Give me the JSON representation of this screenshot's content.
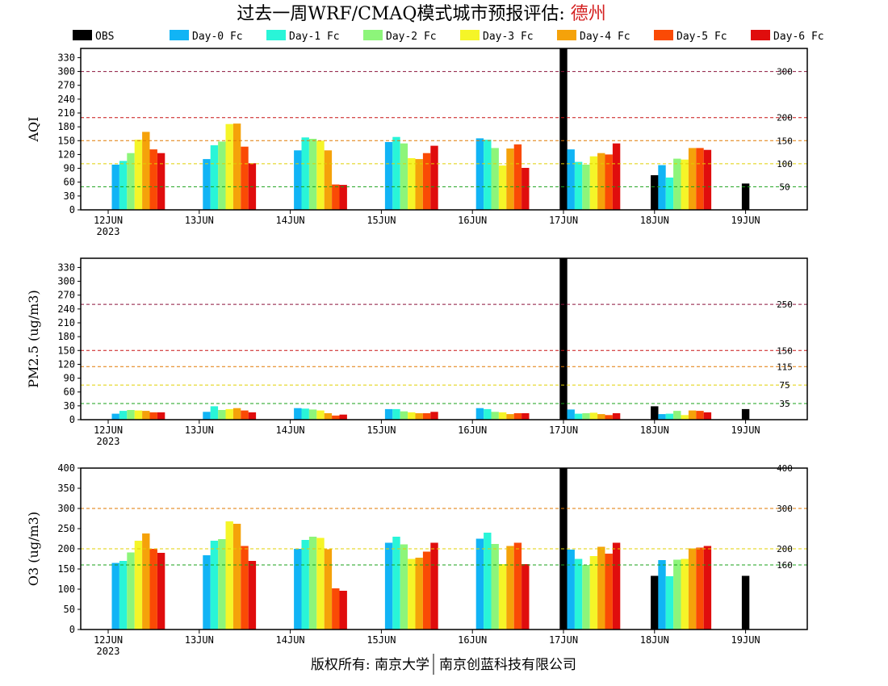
{
  "title_main": "过去一周WRF/CMAQ模式城市预报评估: ",
  "title_city": "德州",
  "footer": {
    "left": "版权所有: 南京大学",
    "right": "南京创蓝科技有限公司"
  },
  "legend": [
    {
      "name": "OBS",
      "color": "#000000"
    },
    {
      "name": "Day-0 Fc",
      "color": "#11b4f5"
    },
    {
      "name": "Day-1 Fc",
      "color": "#29f5d8"
    },
    {
      "name": "Day-2 Fc",
      "color": "#8df57a"
    },
    {
      "name": "Day-3 Fc",
      "color": "#f5f528"
    },
    {
      "name": "Day-4 Fc",
      "color": "#f5a20a"
    },
    {
      "name": "Day-5 Fc",
      "color": "#fa4a05"
    },
    {
      "name": "Day-6 Fc",
      "color": "#e00d0d"
    }
  ],
  "chart_data": [
    {
      "type": "bar",
      "ylabel": "AQI",
      "ylim": [
        0,
        350
      ],
      "yticks": [
        "0",
        "30",
        "60",
        "90",
        "120",
        "150",
        "180",
        "210",
        "240",
        "270",
        "300",
        "330"
      ],
      "categories": [
        "12JUN",
        "13JUN",
        "14JUN",
        "15JUN",
        "16JUN",
        "17JUN",
        "18JUN",
        "19JUN"
      ],
      "x_sub_label": "2023",
      "thresholds": [
        {
          "value": 50,
          "label": "50",
          "color": "#1aa01a"
        },
        {
          "value": 100,
          "label": "100",
          "color": "#e0d000"
        },
        {
          "value": 150,
          "label": "150",
          "color": "#e07800"
        },
        {
          "value": 200,
          "label": "200",
          "color": "#c81414"
        },
        {
          "value": 300,
          "label": "300",
          "color": "#8c143c"
        }
      ],
      "series": [
        {
          "name": "OBS",
          "values": [
            null,
            null,
            null,
            null,
            null,
            350,
            75,
            57
          ]
        },
        {
          "name": "Day-0 Fc",
          "values": [
            98,
            110,
            129,
            147,
            155,
            131,
            97,
            null
          ]
        },
        {
          "name": "Day-1 Fc",
          "values": [
            106,
            140,
            157,
            158,
            152,
            104,
            70,
            null
          ]
        },
        {
          "name": "Day-2 Fc",
          "values": [
            123,
            148,
            154,
            144,
            134,
            98,
            111,
            null
          ]
        },
        {
          "name": "Day-3 Fc",
          "values": [
            152,
            186,
            150,
            112,
            96,
            116,
            109,
            null
          ]
        },
        {
          "name": "Day-4 Fc",
          "values": [
            169,
            187,
            129,
            110,
            133,
            123,
            134,
            null
          ]
        },
        {
          "name": "Day-5 Fc",
          "values": [
            131,
            137,
            55,
            123,
            142,
            120,
            134,
            null
          ]
        },
        {
          "name": "Day-6 Fc",
          "values": [
            123,
            101,
            54,
            139,
            91,
            144,
            130,
            null
          ]
        }
      ]
    },
    {
      "type": "bar",
      "ylabel": "PM2.5 (ug/m3)",
      "ylim": [
        0,
        350
      ],
      "yticks": [
        "0",
        "30",
        "60",
        "90",
        "120",
        "150",
        "180",
        "210",
        "240",
        "270",
        "300",
        "330"
      ],
      "categories": [
        "12JUN",
        "13JUN",
        "14JUN",
        "15JUN",
        "16JUN",
        "17JUN",
        "18JUN",
        "19JUN"
      ],
      "x_sub_label": "2023",
      "thresholds": [
        {
          "value": 35,
          "label": "35",
          "color": "#1aa01a"
        },
        {
          "value": 75,
          "label": "75",
          "color": "#e0d000"
        },
        {
          "value": 115,
          "label": "115",
          "color": "#e07800"
        },
        {
          "value": 150,
          "label": "150",
          "color": "#c81414"
        },
        {
          "value": 250,
          "label": "250",
          "color": "#8c143c"
        }
      ],
      "series": [
        {
          "name": "OBS",
          "values": [
            null,
            null,
            null,
            null,
            null,
            350,
            29,
            23
          ]
        },
        {
          "name": "Day-0 Fc",
          "values": [
            13,
            17,
            25,
            23,
            25,
            22,
            12,
            null
          ]
        },
        {
          "name": "Day-1 Fc",
          "values": [
            19,
            29,
            24,
            23,
            23,
            13,
            13,
            null
          ]
        },
        {
          "name": "Day-2 Fc",
          "values": [
            21,
            21,
            22,
            18,
            17,
            14,
            19,
            null
          ]
        },
        {
          "name": "Day-3 Fc",
          "values": [
            20,
            23,
            20,
            16,
            16,
            15,
            10,
            null
          ]
        },
        {
          "name": "Day-4 Fc",
          "values": [
            19,
            25,
            14,
            14,
            12,
            12,
            20,
            null
          ]
        },
        {
          "name": "Day-5 Fc",
          "values": [
            16,
            20,
            9,
            14,
            14,
            10,
            19,
            null
          ]
        },
        {
          "name": "Day-6 Fc",
          "values": [
            16,
            16,
            11,
            17,
            14,
            14,
            16,
            null
          ]
        }
      ]
    },
    {
      "type": "bar",
      "ylabel": "O3 (ug/m3)",
      "ylim": [
        0,
        400
      ],
      "yticks": [
        "0",
        "50",
        "100",
        "150",
        "200",
        "250",
        "300",
        "350",
        "400"
      ],
      "categories": [
        "12JUN",
        "13JUN",
        "14JUN",
        "15JUN",
        "16JUN",
        "17JUN",
        "18JUN",
        "19JUN"
      ],
      "x_sub_label": "2023",
      "thresholds": [
        {
          "value": 160,
          "label": "160",
          "color": "#1aa01a"
        },
        {
          "value": 200,
          "label": "200",
          "color": "#e0d000"
        },
        {
          "value": 300,
          "label": "300",
          "color": "#e07800"
        },
        {
          "value": 400,
          "label": "400",
          "color": "#c81414"
        }
      ],
      "series": [
        {
          "name": "OBS",
          "values": [
            null,
            null,
            null,
            null,
            null,
            400,
            133,
            133
          ]
        },
        {
          "name": "Day-0 Fc",
          "values": [
            165,
            184,
            200,
            215,
            225,
            198,
            172,
            null
          ]
        },
        {
          "name": "Day-1 Fc",
          "values": [
            170,
            220,
            222,
            230,
            240,
            175,
            132,
            null
          ]
        },
        {
          "name": "Day-2 Fc",
          "values": [
            191,
            224,
            230,
            211,
            212,
            160,
            173,
            null
          ]
        },
        {
          "name": "Day-3 Fc",
          "values": [
            220,
            268,
            227,
            175,
            162,
            182,
            175,
            null
          ]
        },
        {
          "name": "Day-4 Fc",
          "values": [
            238,
            262,
            199,
            178,
            207,
            205,
            201,
            null
          ]
        },
        {
          "name": "Day-5 Fc",
          "values": [
            200,
            207,
            102,
            193,
            215,
            188,
            203,
            null
          ]
        },
        {
          "name": "Day-6 Fc",
          "values": [
            190,
            170,
            96,
            215,
            162,
            215,
            207,
            null
          ]
        }
      ]
    }
  ]
}
